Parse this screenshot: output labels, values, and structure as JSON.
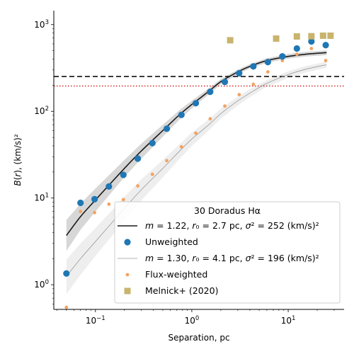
{
  "chart_data": {
    "type": "scatter",
    "xlabel": "Separation, pc",
    "ylabel": "B(r), (km/s)²",
    "xscale": "log",
    "yscale": "log",
    "xlim": [
      0.037,
      38
    ],
    "ylim": [
      0.52,
      1450
    ],
    "grid": false,
    "legend_placement": "bottom-right",
    "x_ticks": [
      {
        "value": 0.1,
        "label": "10",
        "exp": "−1"
      },
      {
        "value": 1,
        "label": "10",
        "exp": "0"
      },
      {
        "value": 10,
        "label": "10",
        "exp": "1"
      }
    ],
    "y_ticks": [
      {
        "value": 1,
        "label": "10",
        "exp": "0"
      },
      {
        "value": 10,
        "label": "10",
        "exp": "1"
      },
      {
        "value": 100,
        "label": "10",
        "exp": "2"
      },
      {
        "value": 1000,
        "label": "10",
        "exp": "3"
      }
    ],
    "legend": {
      "title": "30 Doradus Hα",
      "entries": [
        {
          "key": "model_unweighted",
          "label": "m = 1.22, r₀ = 2.7 pc, σ² = 252 (km/s)²",
          "marker": "line",
          "color": "#1a1a1a"
        },
        {
          "key": "unweighted",
          "label": "Unweighted",
          "marker": "circle",
          "color": "#1f77b4"
        },
        {
          "key": "model_flux",
          "label": "m = 1.30, r₀ = 4.1 pc, σ² = 196 (km/s)²",
          "marker": "thin-line",
          "color": "#999999"
        },
        {
          "key": "flux",
          "label": "Flux-weighted",
          "marker": "small-circle",
          "color": "#f4a261"
        },
        {
          "key": "melnick",
          "label": "Melnick+ (2020)",
          "marker": "square",
          "color": "#c9b46e"
        }
      ]
    },
    "hlines": [
      {
        "y": 252,
        "style": "dashed",
        "color": "#111111"
      },
      {
        "y": 196,
        "style": "dotted",
        "color": "#d62728"
      }
    ],
    "series": [
      {
        "key": "unweighted",
        "marker": "circle",
        "color": "#1f77b4",
        "points": [
          [
            0.05,
            1.35
          ],
          [
            0.07,
            8.8
          ],
          [
            0.098,
            9.7
          ],
          [
            0.138,
            13.6
          ],
          [
            0.195,
            18.5
          ],
          [
            0.275,
            28.5
          ],
          [
            0.39,
            43
          ],
          [
            0.55,
            63
          ],
          [
            0.78,
            91
          ],
          [
            1.1,
            124
          ],
          [
            1.55,
            168
          ],
          [
            2.2,
            218
          ],
          [
            3.1,
            275
          ],
          [
            4.35,
            330
          ],
          [
            6.15,
            370
          ],
          [
            8.7,
            430
          ],
          [
            12.3,
            530
          ],
          [
            17.4,
            640
          ],
          [
            24.5,
            580
          ]
        ]
      },
      {
        "key": "flux",
        "marker": "small-circle",
        "color": "#f4a261",
        "points": [
          [
            0.05,
            0.55
          ],
          [
            0.07,
            7.0
          ],
          [
            0.098,
            6.8
          ],
          [
            0.138,
            8.5
          ],
          [
            0.195,
            9.6
          ],
          [
            0.275,
            13.8
          ],
          [
            0.39,
            18.8
          ],
          [
            0.55,
            27
          ],
          [
            0.78,
            39
          ],
          [
            1.1,
            56
          ],
          [
            1.55,
            82
          ],
          [
            2.2,
            115
          ],
          [
            3.1,
            156
          ],
          [
            4.35,
            205
          ],
          [
            6.15,
            285
          ],
          [
            8.7,
            385
          ],
          [
            12.3,
            455
          ],
          [
            17.4,
            530
          ],
          [
            24.5,
            385
          ]
        ]
      },
      {
        "key": "melnick",
        "marker": "square",
        "color": "#c9b46e",
        "points": [
          [
            2.5,
            660
          ],
          [
            7.5,
            690
          ],
          [
            12.3,
            730
          ],
          [
            17.4,
            735
          ],
          [
            23,
            745
          ],
          [
            27.5,
            745
          ]
        ]
      },
      {
        "key": "model_unweighted",
        "marker": "line",
        "color": "#1a1a1a",
        "points": [
          [
            0.05,
            3.7
          ],
          [
            0.07,
            6.1
          ],
          [
            0.1,
            9.5
          ],
          [
            0.2,
            22
          ],
          [
            0.3,
            35
          ],
          [
            0.5,
            60
          ],
          [
            0.75,
            92
          ],
          [
            1,
            120
          ],
          [
            1.5,
            170
          ],
          [
            2,
            220
          ],
          [
            3,
            285
          ],
          [
            4,
            330
          ],
          [
            6,
            385
          ],
          [
            10,
            430
          ],
          [
            15,
            455
          ],
          [
            25,
            475
          ]
        ],
        "band": [
          [
            0.05,
            2.45,
            5.6
          ],
          [
            0.07,
            4.3,
            8.6
          ],
          [
            0.1,
            7.0,
            12.9
          ],
          [
            0.2,
            17.5,
            27.5
          ],
          [
            0.3,
            28.5,
            42.5
          ],
          [
            0.5,
            51,
            70
          ],
          [
            0.75,
            81,
            104
          ],
          [
            1,
            108,
            133
          ],
          [
            1.5,
            157,
            184
          ],
          [
            2,
            205,
            236
          ],
          [
            3,
            268,
            303
          ],
          [
            4,
            312,
            350
          ],
          [
            6,
            363,
            410
          ],
          [
            10,
            405,
            458
          ],
          [
            15,
            428,
            485
          ],
          [
            25,
            445,
            505
          ]
        ]
      },
      {
        "key": "model_flux",
        "marker": "thin-line",
        "color": "#999999",
        "points": [
          [
            0.05,
            1.25
          ],
          [
            0.07,
            2.0
          ],
          [
            0.1,
            3.15
          ],
          [
            0.2,
            7.6
          ],
          [
            0.3,
            12.5
          ],
          [
            0.5,
            22
          ],
          [
            0.75,
            35
          ],
          [
            1,
            48
          ],
          [
            1.5,
            70
          ],
          [
            2,
            94
          ],
          [
            3,
            132
          ],
          [
            4,
            162
          ],
          [
            6,
            210
          ],
          [
            10,
            265
          ],
          [
            15,
            305
          ],
          [
            25,
            345
          ]
        ],
        "band": [
          [
            0.05,
            0.78,
            1.95
          ],
          [
            0.07,
            1.3,
            3.0
          ],
          [
            0.1,
            2.15,
            4.5
          ],
          [
            0.2,
            5.5,
            10.3
          ],
          [
            0.3,
            9.4,
            16.5
          ],
          [
            0.5,
            17.3,
            27.5
          ],
          [
            0.75,
            28.5,
            42
          ],
          [
            1,
            40,
            57
          ],
          [
            1.5,
            60,
            81
          ],
          [
            2,
            82,
            107
          ],
          [
            3,
            117,
            148
          ],
          [
            4,
            146,
            180
          ],
          [
            6,
            192,
            230
          ],
          [
            10,
            243,
            290
          ],
          [
            15,
            280,
            332
          ],
          [
            25,
            318,
            375
          ]
        ]
      }
    ]
  }
}
